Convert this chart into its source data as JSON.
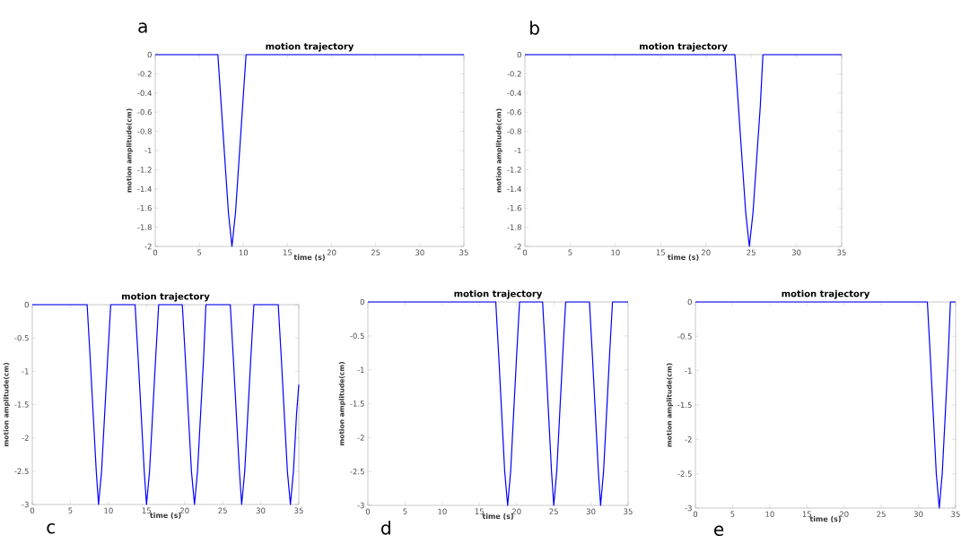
{
  "chart_data": [
    {
      "type": "line",
      "title": "motion trajectory",
      "xlabel": "time (s)",
      "ylabel": "motion amplitude(cm)",
      "annotations": [
        "a"
      ],
      "xlim": [
        0,
        35
      ],
      "ylim": [
        -2,
        0
      ],
      "xticks": [
        0,
        5,
        10,
        15,
        20,
        25,
        30,
        35
      ],
      "yticks": [
        -2,
        -1.8,
        -1.6,
        -1.4,
        -1.2,
        -1,
        -0.8,
        -0.6,
        -0.4,
        -0.2,
        0
      ],
      "x": [
        0,
        7.1,
        7.5,
        7.9,
        8.3,
        8.7,
        9.1,
        9.5,
        9.9,
        10.3,
        35
      ],
      "series": [
        {
          "color": "#0000ff",
          "values": [
            0,
            0,
            -0.55,
            -1.1,
            -1.65,
            -2,
            -1.65,
            -1.1,
            -0.55,
            0,
            0
          ]
        }
      ]
    },
    {
      "type": "line",
      "title": "motion trajectory",
      "xlabel": "time (s)",
      "ylabel": "motion amplitude(cm)",
      "annotations": [
        "b"
      ],
      "xlim": [
        0,
        35
      ],
      "ylim": [
        -2,
        0
      ],
      "xticks": [
        0,
        5,
        10,
        15,
        20,
        25,
        30,
        35
      ],
      "yticks": [
        -2,
        -1.8,
        -1.6,
        -1.4,
        -1.2,
        -1,
        -0.8,
        -0.6,
        -0.4,
        -0.2,
        0
      ],
      "x": [
        0,
        23.2,
        23.6,
        24,
        24.4,
        24.8,
        25.2,
        25.6,
        26,
        26.3,
        35
      ],
      "series": [
        {
          "color": "#0000ff",
          "values": [
            0,
            0,
            -0.55,
            -1.1,
            -1.65,
            -2,
            -1.65,
            -1.1,
            -0.55,
            0,
            0
          ]
        }
      ]
    },
    {
      "type": "line",
      "title": "motion trajectory",
      "xlabel": "time (s)",
      "ylabel": "motion amplitude(cm)",
      "annotations": [
        "c"
      ],
      "xlim": [
        0,
        35
      ],
      "ylim": [
        -3,
        0
      ],
      "xticks": [
        0,
        5,
        10,
        15,
        20,
        25,
        30,
        35
      ],
      "yticks": [
        -3,
        -2.5,
        -2,
        -1.5,
        -1,
        -0.5,
        0
      ],
      "x": [
        0,
        7.2,
        7.6,
        8,
        8.4,
        8.7,
        9.1,
        9.5,
        9.9,
        10.3,
        13.5,
        13.9,
        14.3,
        14.7,
        15,
        15.4,
        15.8,
        16.2,
        16.6,
        19.7,
        20.1,
        20.5,
        20.9,
        21.3,
        21.7,
        22.1,
        22.5,
        22.8,
        26,
        26.4,
        26.8,
        27.2,
        27.5,
        27.9,
        28.3,
        28.7,
        29.1,
        32.3,
        32.7,
        33.1,
        33.5,
        33.9,
        34.3,
        34.7,
        35
      ],
      "series": [
        {
          "color": "#0000ff",
          "values": [
            0,
            0,
            -0.8,
            -1.65,
            -2.5,
            -3,
            -2.5,
            -1.65,
            -0.8,
            0,
            0,
            -0.8,
            -1.65,
            -2.5,
            -3,
            -2.5,
            -1.65,
            -0.8,
            0,
            0,
            -0.8,
            -1.65,
            -2.5,
            -3,
            -2.5,
            -1.65,
            -0.8,
            0,
            0,
            -0.8,
            -1.65,
            -2.5,
            -3,
            -2.5,
            -1.65,
            -0.8,
            0,
            0,
            -0.8,
            -1.65,
            -2.5,
            -3,
            -2.5,
            -1.65,
            -1.2
          ]
        }
      ]
    },
    {
      "type": "line",
      "title": "motion trajectory",
      "xlabel": "time (s)",
      "ylabel": "motion amplitude(cm)",
      "annotations": [
        "d"
      ],
      "xlim": [
        0,
        35
      ],
      "ylim": [
        -3,
        0
      ],
      "xticks": [
        0,
        5,
        10,
        15,
        20,
        25,
        30,
        35
      ],
      "yticks": [
        -3,
        -2.5,
        -2,
        -1.5,
        -1,
        -0.5,
        0
      ],
      "x": [
        0,
        17.2,
        17.6,
        18,
        18.4,
        18.8,
        19.2,
        19.6,
        20,
        20.4,
        23.5,
        23.9,
        24.3,
        24.7,
        25,
        25.4,
        25.8,
        26.2,
        26.6,
        29.8,
        30.2,
        30.6,
        31,
        31.3,
        31.7,
        32.1,
        32.5,
        32.9,
        35
      ],
      "series": [
        {
          "color": "#0000ff",
          "values": [
            0,
            0,
            -0.8,
            -1.65,
            -2.5,
            -3,
            -2.5,
            -1.65,
            -0.8,
            0,
            0,
            -0.8,
            -1.65,
            -2.5,
            -3,
            -2.5,
            -1.65,
            -0.8,
            0,
            0,
            -0.8,
            -1.65,
            -2.5,
            -3,
            -2.5,
            -1.65,
            -0.8,
            0,
            0
          ]
        }
      ]
    },
    {
      "type": "line",
      "title": "motion trajectory",
      "xlabel": "time (s)",
      "ylabel": "motion amplitude(cm)",
      "annotations": [
        "e"
      ],
      "xlim": [
        0,
        35
      ],
      "ylim": [
        -3,
        0
      ],
      "xticks": [
        0,
        5,
        10,
        15,
        20,
        25,
        30,
        35
      ],
      "yticks": [
        -3,
        -2.5,
        -2,
        -1.5,
        -1,
        -0.5,
        0
      ],
      "x": [
        0,
        31.2,
        31.6,
        32,
        32.4,
        32.8,
        33.2,
        33.6,
        34,
        34.3,
        35
      ],
      "series": [
        {
          "color": "#0000ff",
          "values": [
            0,
            0,
            -0.8,
            -1.65,
            -2.5,
            -3,
            -2.5,
            -1.65,
            -0.8,
            0,
            0
          ]
        }
      ]
    }
  ]
}
